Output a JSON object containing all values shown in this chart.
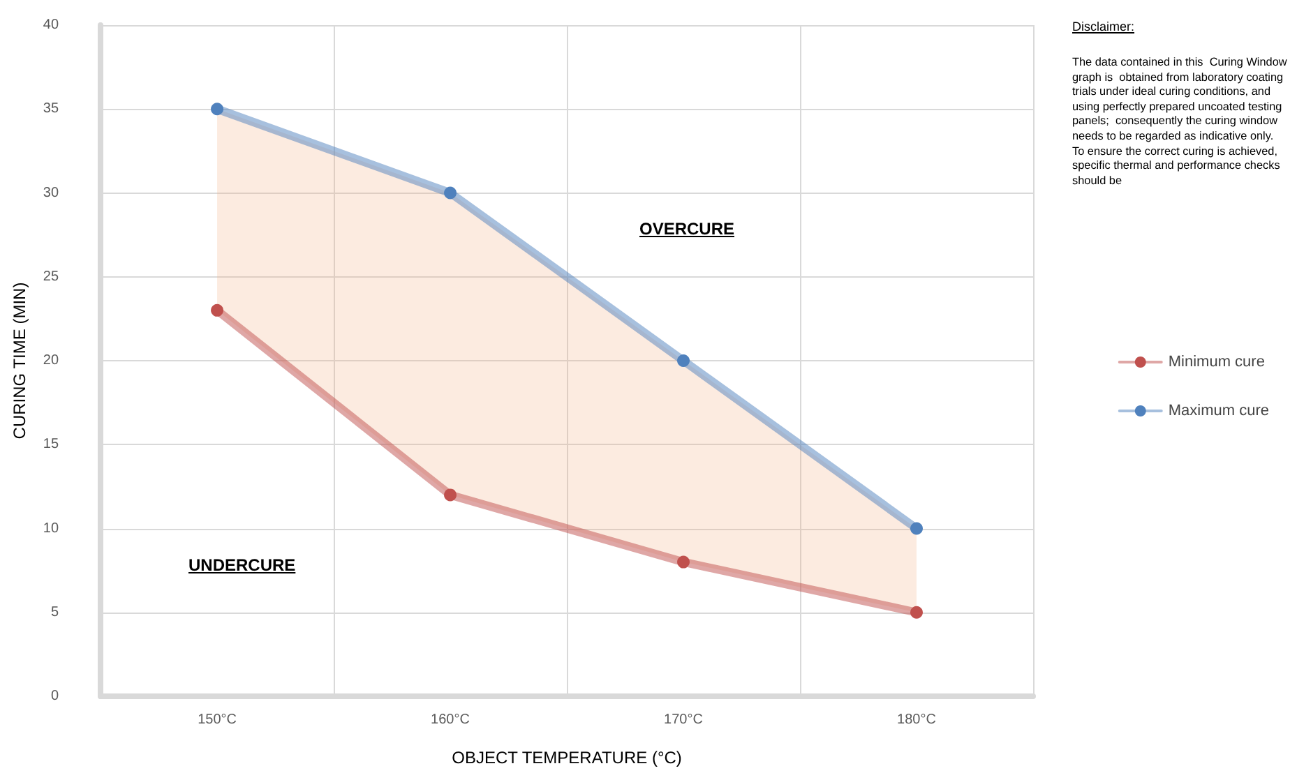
{
  "chart_data": {
    "type": "line",
    "xlabel": "OBJECT TEMPERATURE (°C)",
    "ylabel": "CURING TIME (MIN)",
    "categories": [
      "150°C",
      "160°C",
      "170°C",
      "180°C"
    ],
    "series": [
      {
        "name": "Minimum cure",
        "color": "#c0504d",
        "values": [
          23,
          12,
          8,
          5
        ],
        "lower": [
          23,
          12,
          8,
          5
        ],
        "upper": [
          35,
          30,
          20,
          10
        ]
      },
      {
        "name": "Maximum cure",
        "color": "#4f81bd",
        "values": [
          35,
          30,
          20,
          10
        ]
      }
    ],
    "ylim": [
      0,
      40
    ],
    "yticks": [
      0,
      5,
      10,
      15,
      20,
      25,
      30,
      35,
      40
    ],
    "grid": true,
    "legend": "right",
    "marker": "circle",
    "line_style": "solid",
    "annotations": [
      "UNDERCURE",
      "OVERCURE",
      "Disclaimer:",
      "The data contained in this  Curing Window graph is  obtained from laboratory coating trials under ideal curing conditions, and using perfectly prepared uncoated testing panels;  consequently the curing window needs to be regarded as indicative only.\nTo ensure the correct curing is achieved, specific thermal and performance checks should be"
    ]
  }
}
